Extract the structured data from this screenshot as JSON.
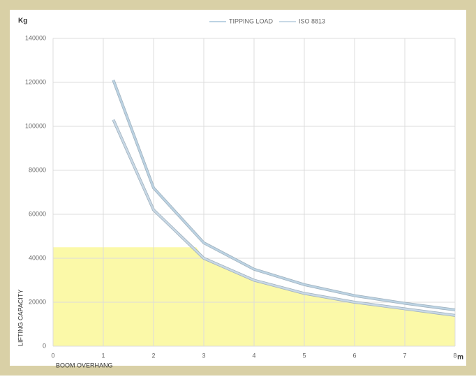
{
  "chart_data": {
    "type": "line",
    "y_unit": "Kg",
    "x_unit": "m",
    "ylabel": "LIFTING CAPACITY",
    "xlabel": "BOOM OVERHANG",
    "x": [
      1.2,
      2,
      3,
      4,
      5,
      6,
      7,
      8
    ],
    "series": [
      {
        "name": "TIPPING LOAD",
        "color": "#bcd3e3",
        "values": [
          121000,
          72000,
          47000,
          35000,
          28000,
          23000,
          19500,
          16500
        ]
      },
      {
        "name": "ISO 8813",
        "color": "#c9d9e6",
        "values": [
          103000,
          62000,
          40000,
          30000,
          24000,
          20000,
          17000,
          14000
        ]
      }
    ],
    "area": {
      "color": "#fbf9a8",
      "x": [
        0,
        2.85,
        3,
        4,
        5,
        6,
        7,
        8
      ],
      "values": [
        45000,
        45000,
        40000,
        30000,
        24000,
        20000,
        17000,
        14000
      ]
    },
    "xlim": [
      0,
      8
    ],
    "xticks": [
      0,
      1,
      2,
      3,
      4,
      5,
      6,
      7,
      8
    ],
    "ylim": [
      0,
      140000
    ],
    "yticks": [
      0,
      20000,
      40000,
      60000,
      80000,
      100000,
      120000,
      140000
    ],
    "grid": true,
    "legend": "top"
  }
}
